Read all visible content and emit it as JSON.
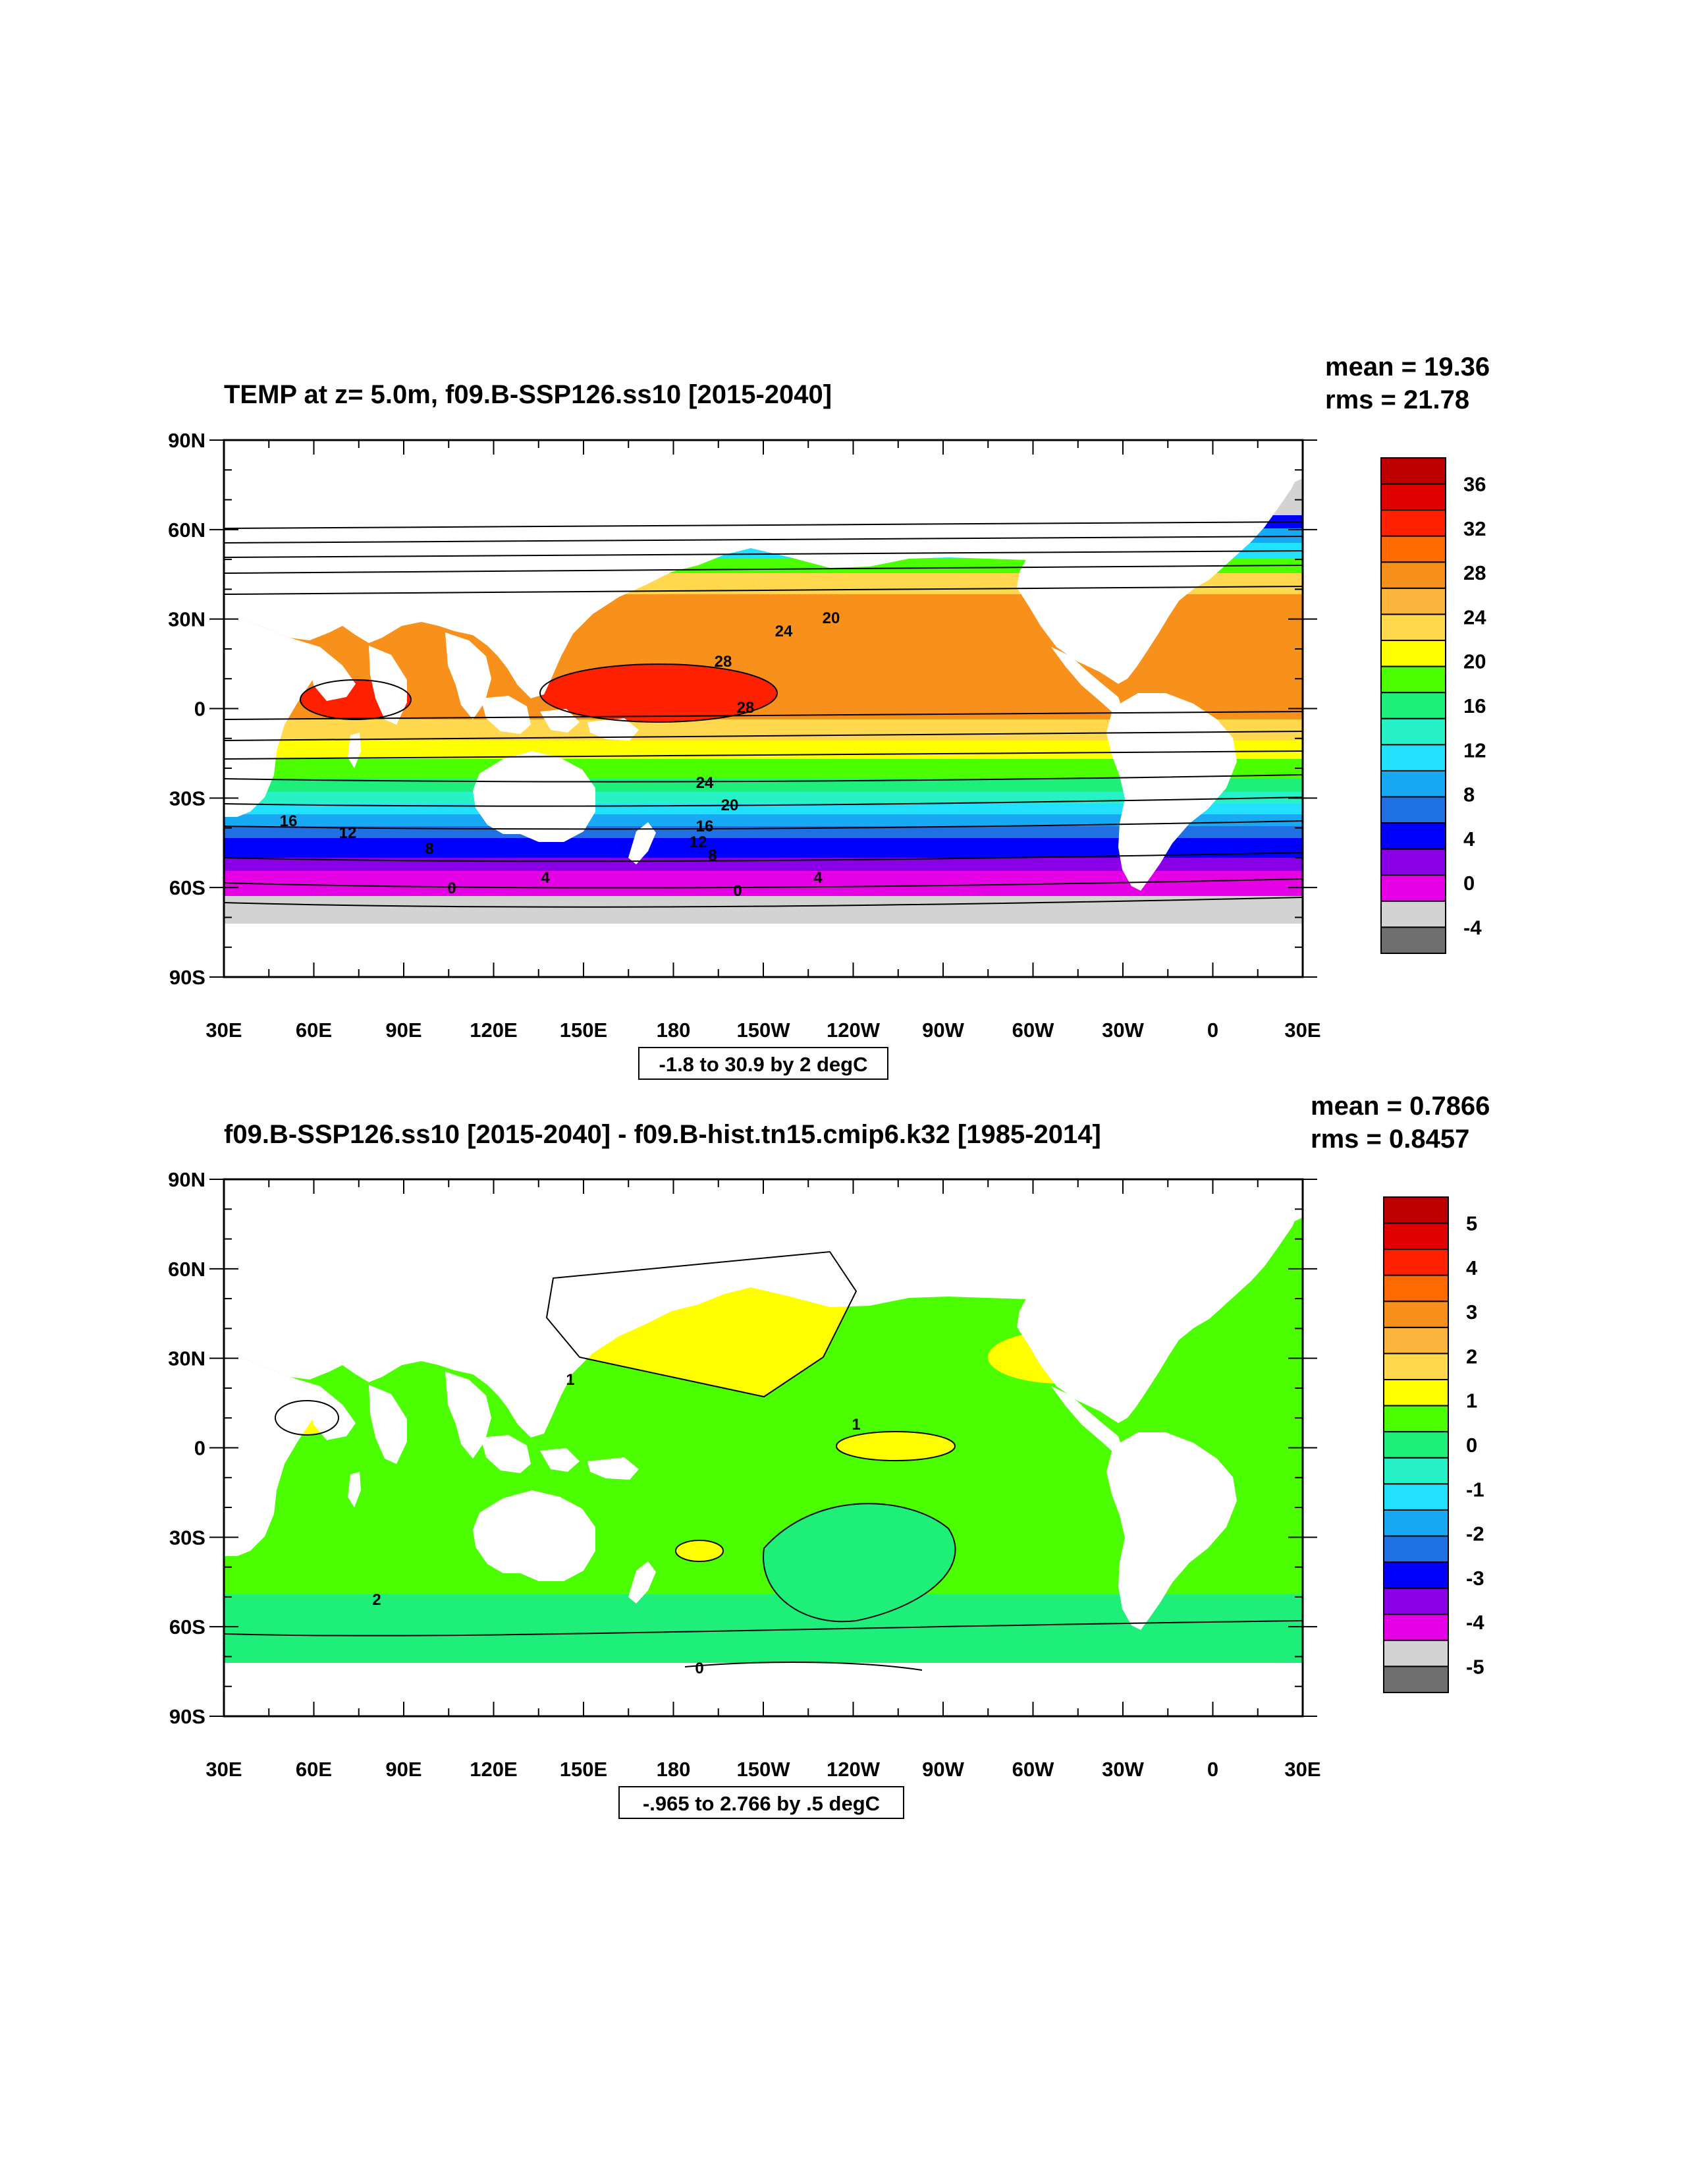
{
  "panels": [
    {
      "title": "TEMP at z=   5.0m, f09.B-SSP126.ss10 [2015-2040]",
      "mean": "mean = 19.36",
      "rms": "rms = 21.78",
      "contour_info": "-1.8 to 30.9 by 2 degC",
      "colorbar_labels": [
        "36",
        "32",
        "28",
        "24",
        "20",
        "16",
        "12",
        "8",
        "4",
        "0",
        "-4"
      ],
      "contour_labels": [
        "20",
        "24",
        "28",
        "28",
        "24",
        "20",
        "16",
        "16",
        "12",
        "12",
        "8",
        "8",
        "4",
        "4",
        "0",
        "0"
      ]
    },
    {
      "title": "f09.B-SSP126.ss10 [2015-2040] - f09.B-hist.tn15.cmip6.k32 [1985-2014]",
      "mean": "mean = 0.7866",
      "rms": "rms = 0.8457",
      "contour_info": "-.965 to 2.766 by .5 degC",
      "colorbar_labels": [
        "5",
        "4",
        "3",
        "2",
        "1",
        "0",
        "-1",
        "-2",
        "-3",
        "-4",
        "-5"
      ],
      "contour_labels": [
        "1",
        "1",
        "0",
        "2"
      ]
    }
  ],
  "x_tick_labels": [
    "30E",
    "60E",
    "90E",
    "120E",
    "150E",
    "180",
    "150W",
    "120W",
    "90W",
    "60W",
    "30W",
    "0",
    "30E"
  ],
  "y_tick_labels": [
    "90N",
    "60N",
    "30N",
    "0",
    "30S",
    "60S",
    "90S"
  ],
  "colors": {
    "land": "#ffffff",
    "ice": "#d3d3d3",
    "temp_colorbar": [
      "#bf0000",
      "#e00000",
      "#ff2000",
      "#ff6a00",
      "#f8901c",
      "#fcb53c",
      "#ffd84d",
      "#ffff00",
      "#4cff00",
      "#1eef78",
      "#27f1c6",
      "#22e1ff",
      "#17a9f4",
      "#1f70e3",
      "#0000ff",
      "#8a00e6",
      "#e600e6",
      "#d3d3d3",
      "#6f6f6f"
    ],
    "diff_colorbar": [
      "#c00000",
      "#e00000",
      "#ff2000",
      "#ff6a00",
      "#f8901c",
      "#fcb53c",
      "#ffd84d",
      "#ffff00",
      "#4cff00",
      "#1eef78",
      "#27f1c6",
      "#22e1ff",
      "#17a9f4",
      "#1f70e3",
      "#0000ff",
      "#8a00e6",
      "#e600e6",
      "#d3d3d3",
      "#6f6f6f"
    ]
  }
}
